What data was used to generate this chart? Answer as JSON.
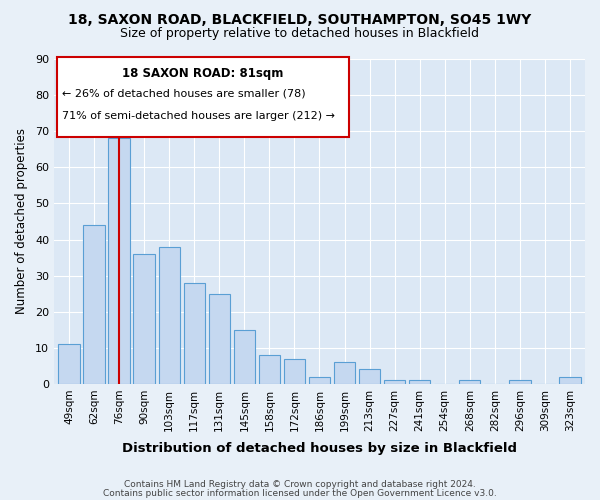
{
  "title1": "18, SAXON ROAD, BLACKFIELD, SOUTHAMPTON, SO45 1WY",
  "title2": "Size of property relative to detached houses in Blackfield",
  "xlabel": "Distribution of detached houses by size in Blackfield",
  "ylabel": "Number of detached properties",
  "categories": [
    "49sqm",
    "62sqm",
    "76sqm",
    "90sqm",
    "103sqm",
    "117sqm",
    "131sqm",
    "145sqm",
    "158sqm",
    "172sqm",
    "186sqm",
    "199sqm",
    "213sqm",
    "227sqm",
    "241sqm",
    "254sqm",
    "268sqm",
    "282sqm",
    "296sqm",
    "309sqm",
    "323sqm"
  ],
  "values": [
    11,
    44,
    68,
    36,
    38,
    28,
    25,
    15,
    8,
    7,
    2,
    6,
    4,
    1,
    1,
    0,
    1,
    0,
    1,
    0,
    2
  ],
  "bar_color": "#c5d8f0",
  "bar_edge_color": "#5a9fd4",
  "vline_x": 2,
  "vline_color": "#cc0000",
  "annotation_title": "18 SAXON ROAD: 81sqm",
  "annotation_line1": "← 26% of detached houses are smaller (78)",
  "annotation_line2": "71% of semi-detached houses are larger (212) →",
  "annotation_box_color": "#ffffff",
  "annotation_box_edge": "#cc0000",
  "ylim": [
    0,
    90
  ],
  "yticks": [
    0,
    10,
    20,
    30,
    40,
    50,
    60,
    70,
    80,
    90
  ],
  "footer1": "Contains HM Land Registry data © Crown copyright and database right 2024.",
  "footer2": "Contains public sector information licensed under the Open Government Licence v3.0.",
  "bg_color": "#e8f0f8",
  "plot_bg_color": "#dce8f5"
}
